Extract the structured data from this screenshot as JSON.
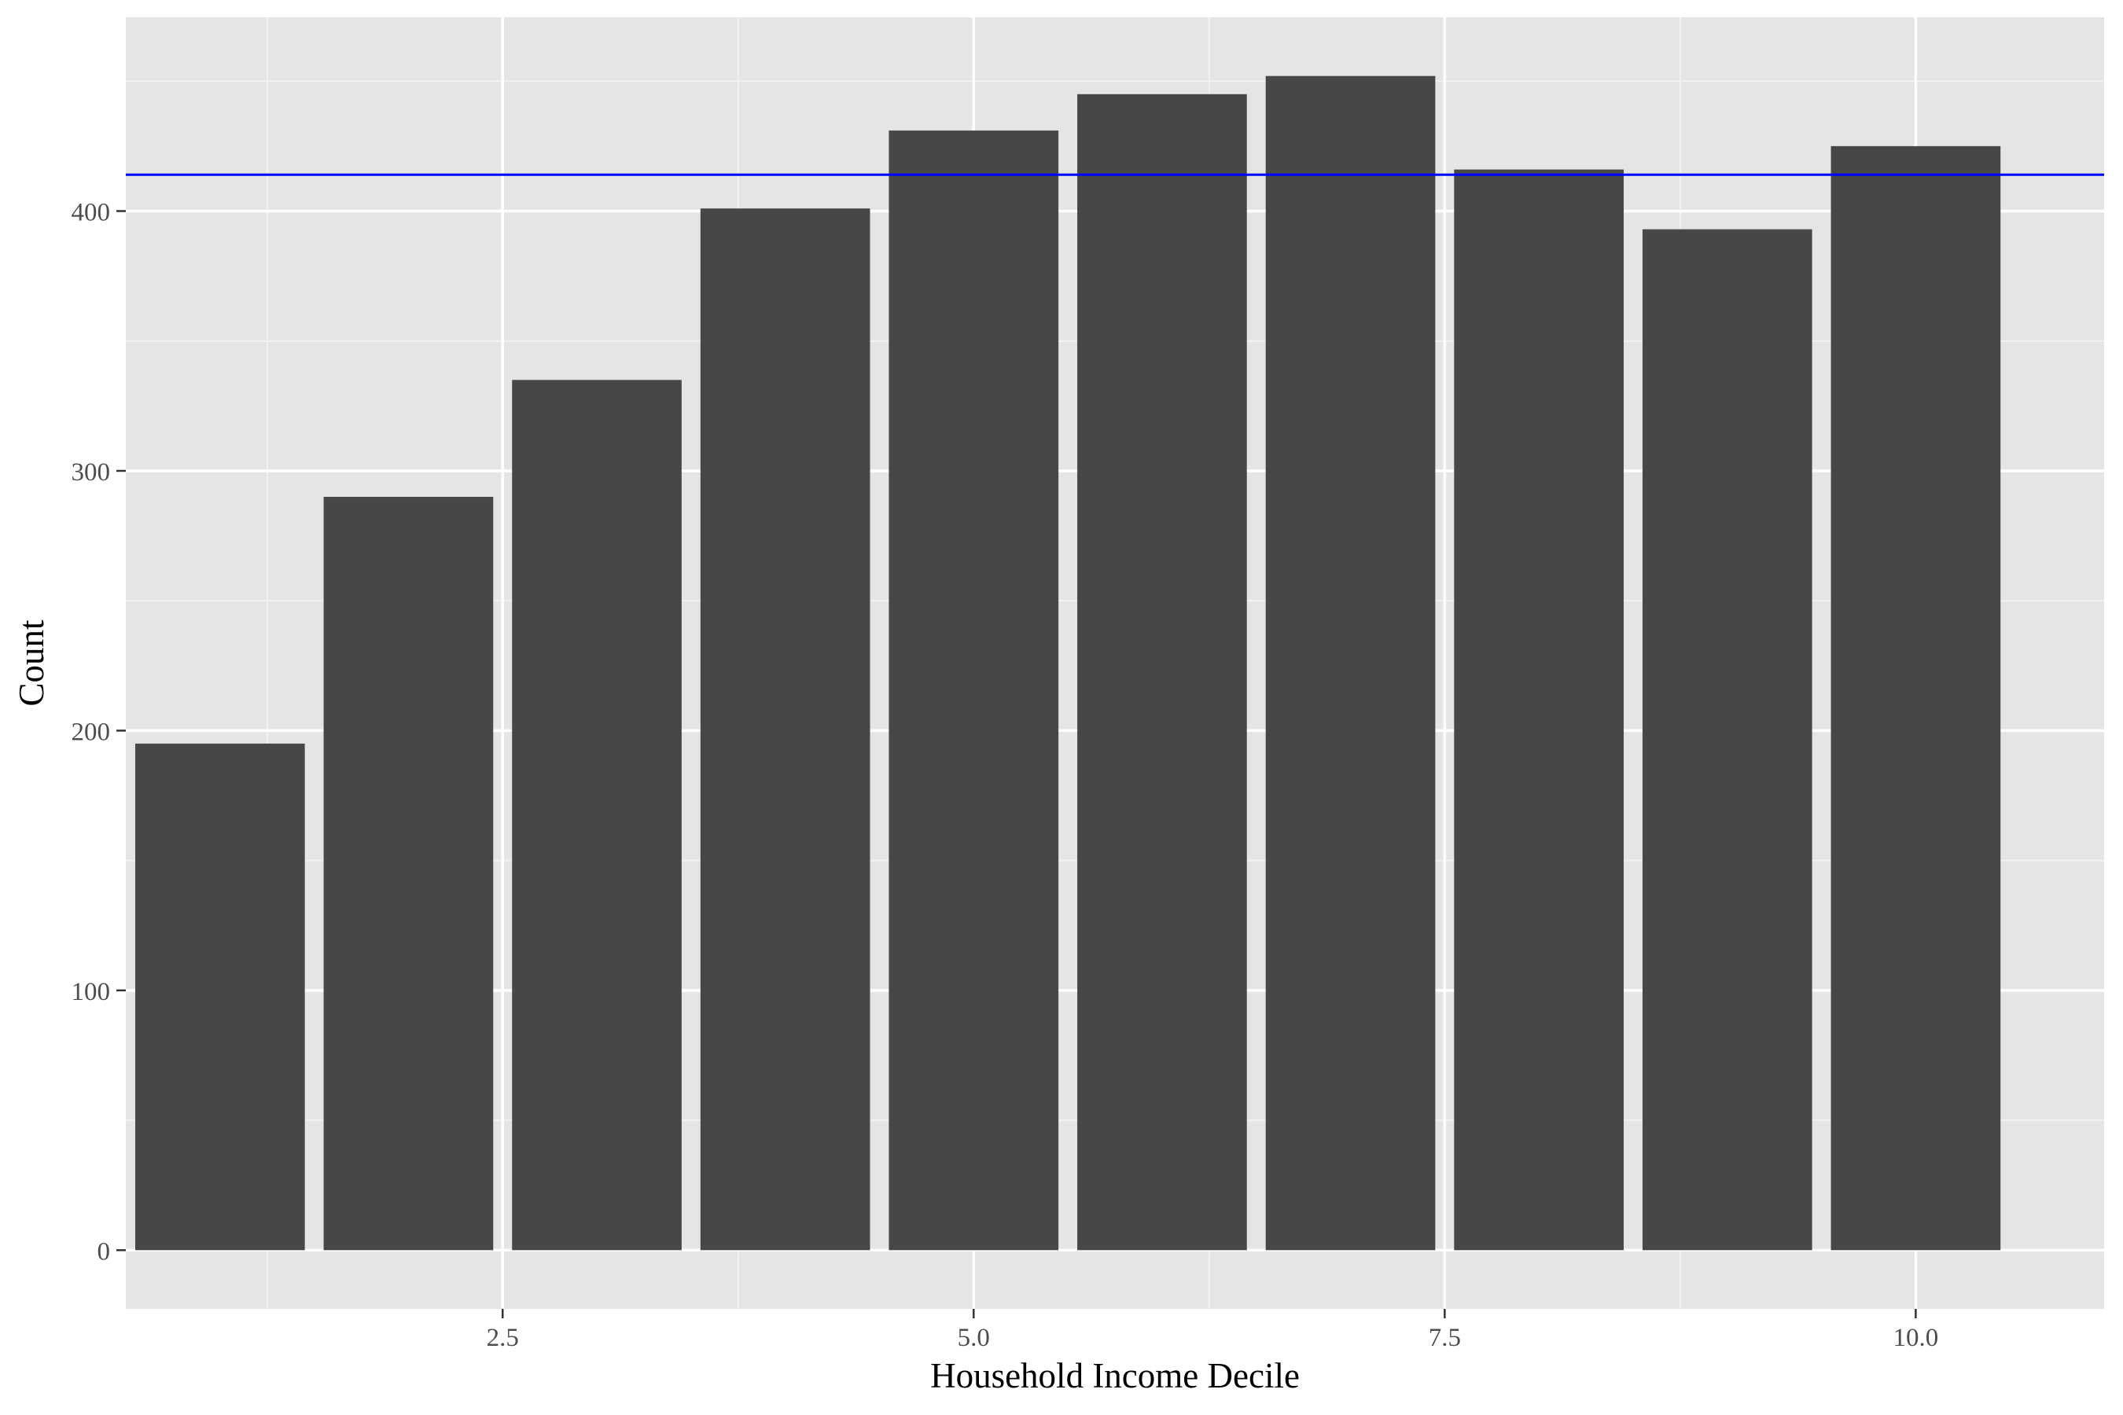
{
  "chart_data": {
    "type": "bar",
    "xlabel": "Household Income Decile",
    "ylabel": "Count",
    "x": [
      1,
      2,
      3,
      4,
      5,
      6,
      7,
      8,
      9,
      10
    ],
    "values": [
      195,
      290,
      335,
      401,
      431,
      445,
      452,
      416,
      393,
      425
    ],
    "reference_line": {
      "y": 414,
      "color": "#0000ff"
    },
    "xlim": [
      0.5,
      11.0
    ],
    "ylim": [
      -22.6,
      474.6
    ],
    "x_ticks": [
      2.5,
      5.0,
      7.5,
      10.0
    ],
    "x_tick_labels": [
      "2.5",
      "5.0",
      "7.5",
      "10.0"
    ],
    "y_ticks": [
      0,
      100,
      200,
      300,
      400
    ],
    "y_tick_labels": [
      "0",
      "100",
      "200",
      "300",
      "400"
    ],
    "grid": true,
    "legend": "none",
    "colors": {
      "bar": "#474747",
      "panel_background": "#e5e5e5",
      "grid_major": "#ffffff",
      "grid_minor": "#f2f2f2",
      "tick_text": "#4d4d4d",
      "axis_title": "#000000"
    }
  }
}
